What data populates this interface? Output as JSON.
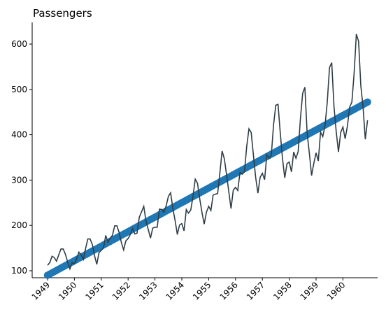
{
  "chart_data": {
    "type": "line",
    "title": "Passengers",
    "xlabel": "",
    "ylabel": "",
    "x_start": "1949-01",
    "x_end": "1960-12",
    "x_ticks": [
      "1949",
      "1950",
      "1951",
      "1952",
      "1953",
      "1954",
      "1955",
      "1956",
      "1957",
      "1958",
      "1959",
      "1960"
    ],
    "y_ticks": [
      100,
      200,
      300,
      400,
      500,
      600
    ],
    "ylim": [
      80,
      650
    ],
    "grid": false,
    "series": [
      {
        "kind": "observed",
        "color": "#2f3e46",
        "values": [
          112,
          118,
          132,
          129,
          121,
          135,
          148,
          148,
          136,
          119,
          104,
          118,
          115,
          126,
          141,
          135,
          125,
          149,
          170,
          170,
          158,
          133,
          114,
          140,
          145,
          150,
          178,
          163,
          172,
          178,
          199,
          199,
          184,
          162,
          146,
          166,
          171,
          180,
          193,
          181,
          183,
          218,
          230,
          242,
          209,
          191,
          172,
          194,
          196,
          196,
          236,
          235,
          229,
          243,
          264,
          272,
          237,
          211,
          180,
          201,
          204,
          188,
          235,
          227,
          234,
          264,
          302,
          293,
          259,
          229,
          203,
          229,
          242,
          233,
          267,
          269,
          270,
          315,
          364,
          347,
          312,
          274,
          237,
          278,
          284,
          277,
          317,
          313,
          318,
          374,
          413,
          405,
          355,
          306,
          271,
          306,
          315,
          301,
          356,
          348,
          355,
          422,
          465,
          467,
          404,
          347,
          305,
          336,
          340,
          318,
          362,
          348,
          363,
          435,
          491,
          505,
          404,
          359,
          310,
          337,
          360,
          342,
          406,
          396,
          420,
          472,
          548,
          559,
          463,
          407,
          362,
          405,
          417,
          391,
          419,
          461,
          472,
          535,
          622,
          606,
          508,
          461,
          390,
          432
        ]
      },
      {
        "kind": "trend",
        "color": "#1f77b4",
        "start": 90,
        "end": 472
      }
    ]
  }
}
